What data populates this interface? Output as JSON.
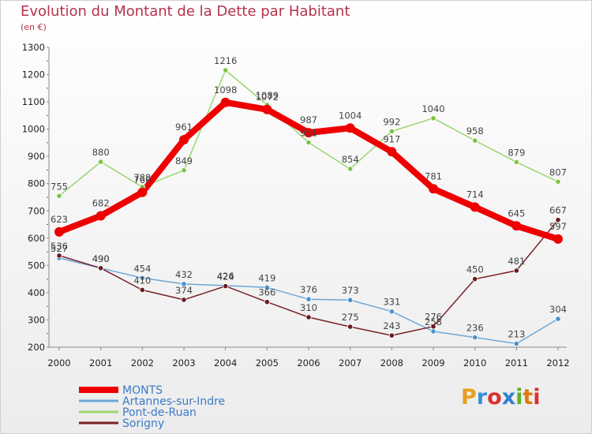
{
  "header": {
    "title": "Evolution du Montant de la Dette par Habitant",
    "subtitle": "(en €)"
  },
  "logo": {
    "text": "Proxiti",
    "colors": [
      "#e8a020",
      "#3b8fd8",
      "#d93030",
      "#2e7fd0",
      "#5bb030",
      "#e07a10",
      "#d93030"
    ]
  },
  "chart_data": {
    "type": "line",
    "x": [
      "2000",
      "2001",
      "2002",
      "2003",
      "2004",
      "2005",
      "2006",
      "2007",
      "2008",
      "2009",
      "2010",
      "2011",
      "2012"
    ],
    "ylim": [
      200,
      1300
    ],
    "yticks": [
      200,
      300,
      400,
      500,
      600,
      700,
      800,
      900,
      1000,
      1100,
      1200,
      1300
    ],
    "grid": false,
    "legend": "bottom-left",
    "series": [
      {
        "name": "Artannes-sur-Indre",
        "color": "#6ea6d6",
        "marker": "#4a90cc",
        "width": 1.5,
        "values": [
          527,
          490,
          454,
          432,
          426,
          419,
          376,
          373,
          331,
          258,
          236,
          213,
          304
        ],
        "labels": [
          "527",
          "490",
          "454",
          "432",
          "426",
          "419",
          "376",
          "373",
          "331",
          "258",
          "236",
          "213",
          "304"
        ]
      },
      {
        "name": "Sorigny",
        "color": "#7a2228",
        "marker": "#6a1a20",
        "width": 1.5,
        "values": [
          536,
          490,
          410,
          374,
          424,
          366,
          310,
          275,
          243,
          276,
          450,
          481,
          667
        ],
        "labels": [
          "536",
          "490",
          "410",
          "374",
          "424",
          "366",
          "310",
          "275",
          "243",
          "276",
          "450",
          "481",
          "667"
        ]
      },
      {
        "name": "Pont-de-Ruan",
        "color": "#9ad66e",
        "marker": "#7cc544",
        "width": 1.5,
        "values": [
          755,
          880,
          788,
          849,
          1216,
          1089,
          951,
          854,
          992,
          1040,
          958,
          879,
          807
        ],
        "labels": [
          "755",
          "880",
          "788",
          "849",
          "1216",
          "1089",
          "951",
          "854",
          "992",
          "1040",
          "958",
          "879",
          "807"
        ]
      },
      {
        "name": "MONTS",
        "color": "#ee0000",
        "marker": "#ee0000",
        "width": 8,
        "values": [
          623,
          682,
          768,
          961,
          1098,
          1072,
          987,
          1004,
          917,
          781,
          714,
          645,
          597
        ],
        "labels": [
          "623",
          "682",
          "768",
          "961",
          "1098",
          "1072",
          "987",
          "1004",
          "917",
          "781",
          "714",
          "645",
          "597"
        ]
      }
    ],
    "legend_order": [
      {
        "name": "MONTS",
        "color": "#ee0000",
        "text_color": "#3a7cc8",
        "width": 8
      },
      {
        "name": "Artannes-sur-Indre",
        "color": "#6ea6d6",
        "text_color": "#3a7cc8",
        "width": 3
      },
      {
        "name": "Pont-de-Ruan",
        "color": "#9ad66e",
        "text_color": "#3a7cc8",
        "width": 3
      },
      {
        "name": "Sorigny",
        "color": "#7a2228",
        "text_color": "#3a7cc8",
        "width": 3
      }
    ]
  }
}
